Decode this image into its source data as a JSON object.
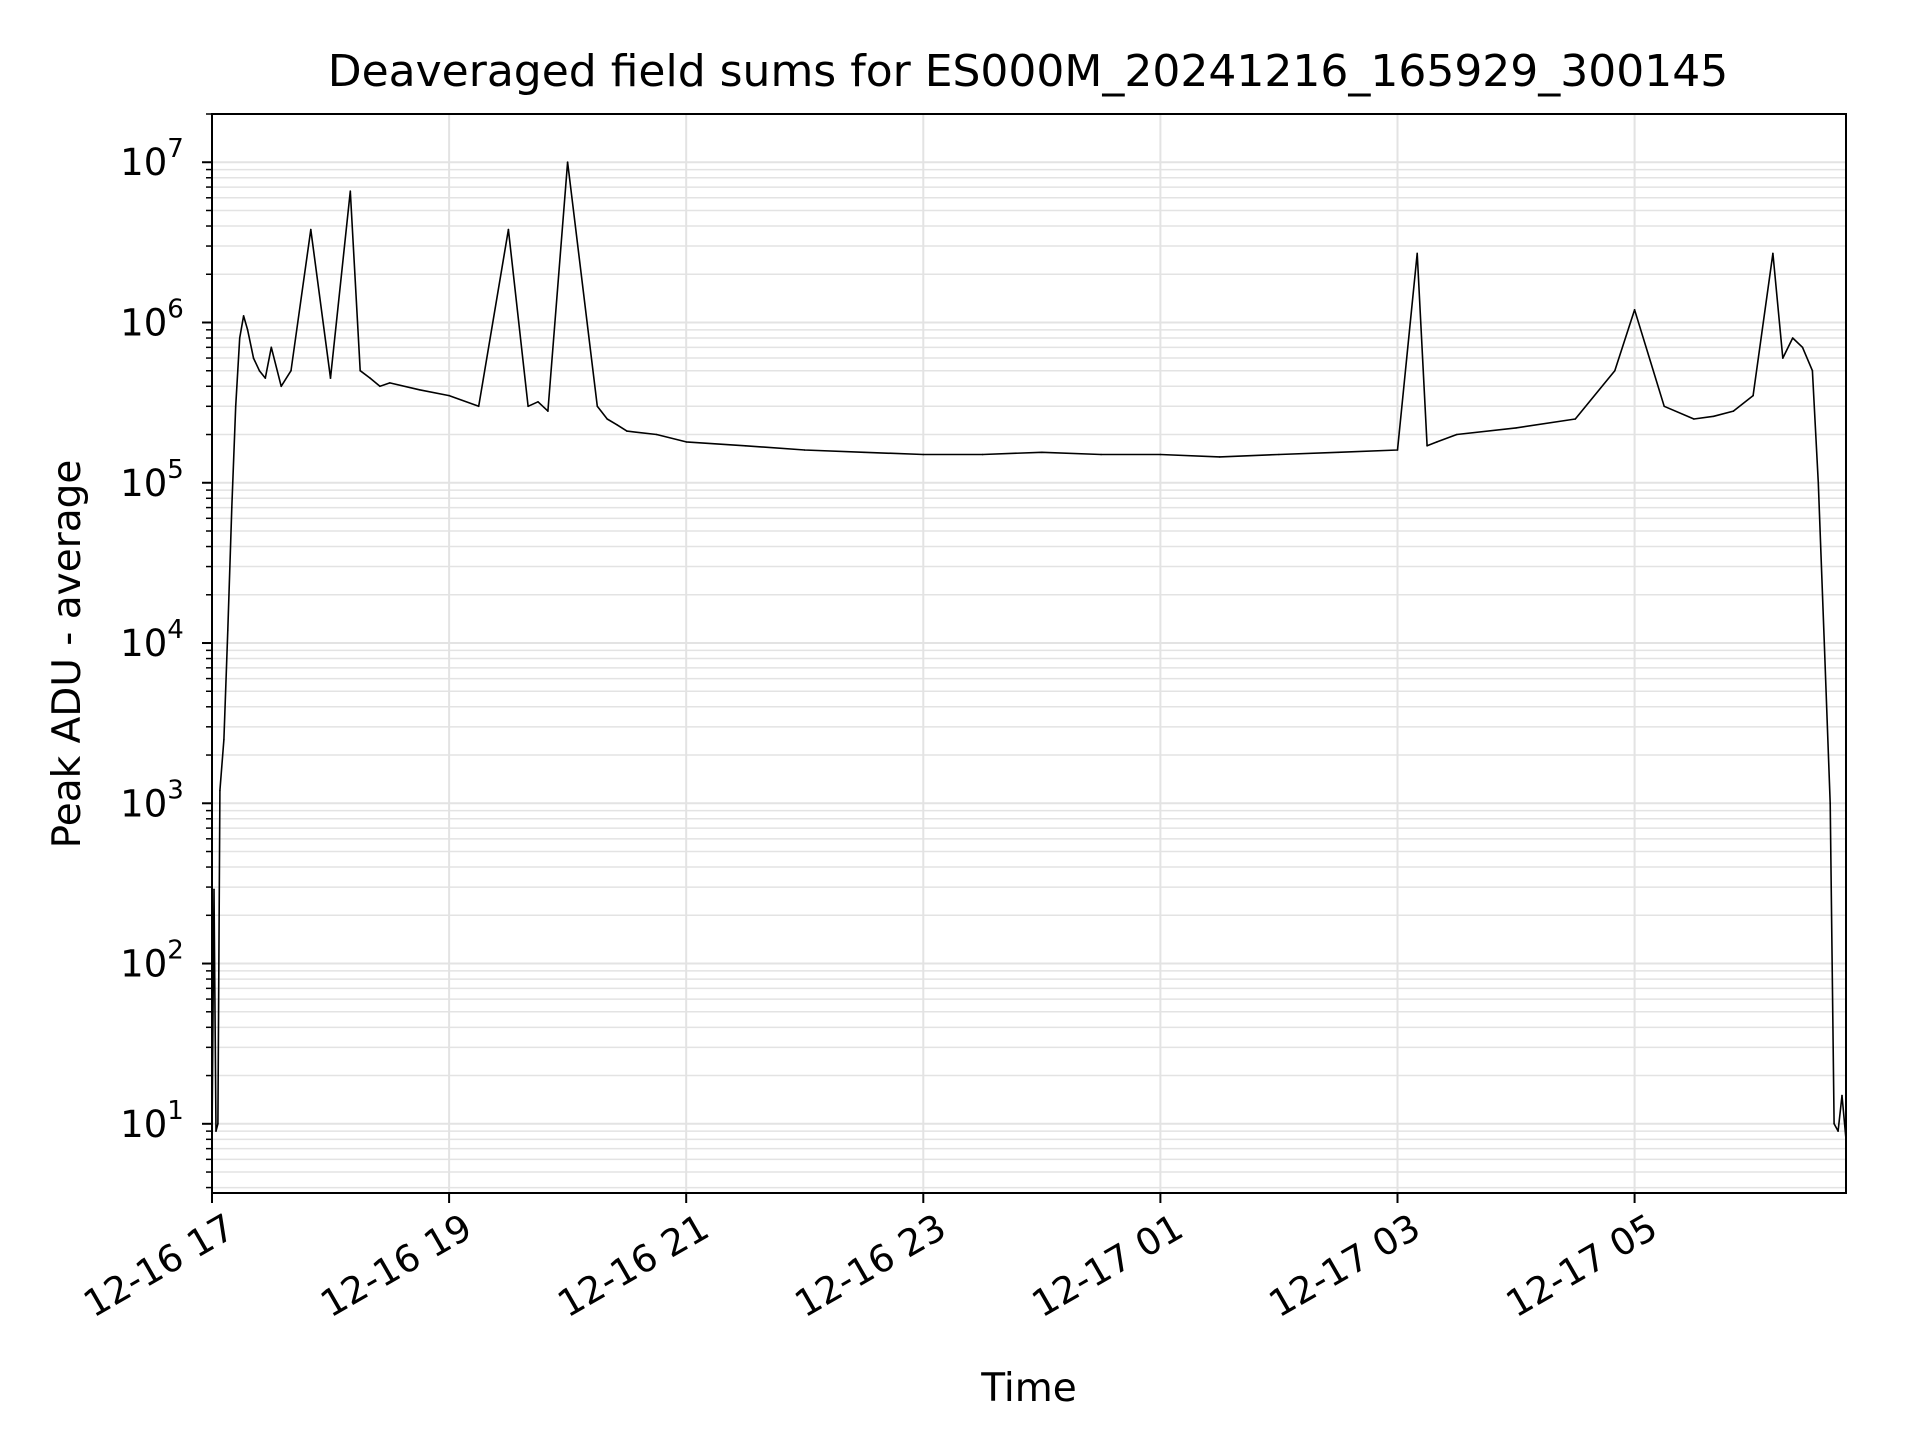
{
  "chart_data": {
    "type": "line",
    "title": "Deaveraged field sums for ES000M_20241216_165929_300145",
    "xlabel": "Time",
    "ylabel": "Peak ADU - average",
    "yscale": "log",
    "ylim": [
      3.7,
      20000000
    ],
    "xlim": [
      "2024-12-16 17:00",
      "2024-12-17 06:47"
    ],
    "x_ticks": [
      "12-16 17",
      "12-16 19",
      "12-16 21",
      "12-16 23",
      "12-17 01",
      "12-17 03",
      "12-17 05"
    ],
    "y_ticks": [
      {
        "base": "10",
        "exp": "1",
        "value": 10
      },
      {
        "base": "10",
        "exp": "2",
        "value": 100
      },
      {
        "base": "10",
        "exp": "3",
        "value": 1000
      },
      {
        "base": "10",
        "exp": "4",
        "value": 10000
      },
      {
        "base": "10",
        "exp": "5",
        "value": 100000
      },
      {
        "base": "10",
        "exp": "6",
        "value": 1000000
      },
      {
        "base": "10",
        "exp": "7",
        "value": 10000000
      }
    ],
    "grid": true,
    "line_color": "#000000",
    "grid_color": "#e3e3e3",
    "series": [
      {
        "x": [
          "2024-12-16 17:00",
          "2024-12-16 17:01",
          "2024-12-16 17:02",
          "2024-12-16 17:03",
          "2024-12-16 17:04",
          "2024-12-16 17:06",
          "2024-12-16 17:08",
          "2024-12-16 17:10",
          "2024-12-16 17:12",
          "2024-12-16 17:14",
          "2024-12-16 17:16",
          "2024-12-16 17:18",
          "2024-12-16 17:21",
          "2024-12-16 17:24",
          "2024-12-16 17:27",
          "2024-12-16 17:30",
          "2024-12-16 17:35",
          "2024-12-16 17:40",
          "2024-12-16 17:50",
          "2024-12-16 18:00",
          "2024-12-16 18:10",
          "2024-12-16 18:15",
          "2024-12-16 18:20",
          "2024-12-16 18:25",
          "2024-12-16 18:30",
          "2024-12-16 18:45",
          "2024-12-16 19:00",
          "2024-12-16 19:15",
          "2024-12-16 19:30",
          "2024-12-16 19:40",
          "2024-12-16 19:45",
          "2024-12-16 19:50",
          "2024-12-16 20:00",
          "2024-12-16 20:15",
          "2024-12-16 20:20",
          "2024-12-16 20:25",
          "2024-12-16 20:30",
          "2024-12-16 20:45",
          "2024-12-16 21:00",
          "2024-12-16 21:30",
          "2024-12-16 22:00",
          "2024-12-16 22:30",
          "2024-12-16 23:00",
          "2024-12-16 23:30",
          "2024-12-17 00:00",
          "2024-12-17 00:30",
          "2024-12-17 01:00",
          "2024-12-17 01:30",
          "2024-12-17 02:00",
          "2024-12-17 02:30",
          "2024-12-17 03:00",
          "2024-12-17 03:10",
          "2024-12-17 03:15",
          "2024-12-17 03:20",
          "2024-12-17 03:30",
          "2024-12-17 04:00",
          "2024-12-17 04:30",
          "2024-12-17 04:50",
          "2024-12-17 05:00",
          "2024-12-17 05:15",
          "2024-12-17 05:30",
          "2024-12-17 05:40",
          "2024-12-17 05:50",
          "2024-12-17 06:00",
          "2024-12-17 06:10",
          "2024-12-17 06:15",
          "2024-12-17 06:20",
          "2024-12-17 06:25",
          "2024-12-17 06:30",
          "2024-12-17 06:33",
          "2024-12-17 06:36",
          "2024-12-17 06:39",
          "2024-12-17 06:41",
          "2024-12-17 06:43",
          "2024-12-17 06:45",
          "2024-12-17 06:47"
        ],
        "y": [
          8,
          290,
          9,
          10,
          1200,
          2500,
          12000,
          70000,
          300000,
          800000,
          1100000,
          900000,
          600000,
          500000,
          450000,
          700000,
          400000,
          500000,
          3800000,
          450000,
          6600000,
          500000,
          450000,
          400000,
          420000,
          380000,
          350000,
          300000,
          3800000,
          300000,
          320000,
          280000,
          10000000,
          300000,
          250000,
          230000,
          210000,
          200000,
          180000,
          170000,
          160000,
          155000,
          150000,
          150000,
          155000,
          150000,
          150000,
          145000,
          150000,
          155000,
          160000,
          2700000,
          170000,
          180000,
          200000,
          220000,
          250000,
          500000,
          1200000,
          300000,
          250000,
          260000,
          280000,
          350000,
          2700000,
          600000,
          800000,
          700000,
          500000,
          100000,
          10000,
          1000,
          10,
          9,
          15,
          8
        ]
      }
    ]
  }
}
